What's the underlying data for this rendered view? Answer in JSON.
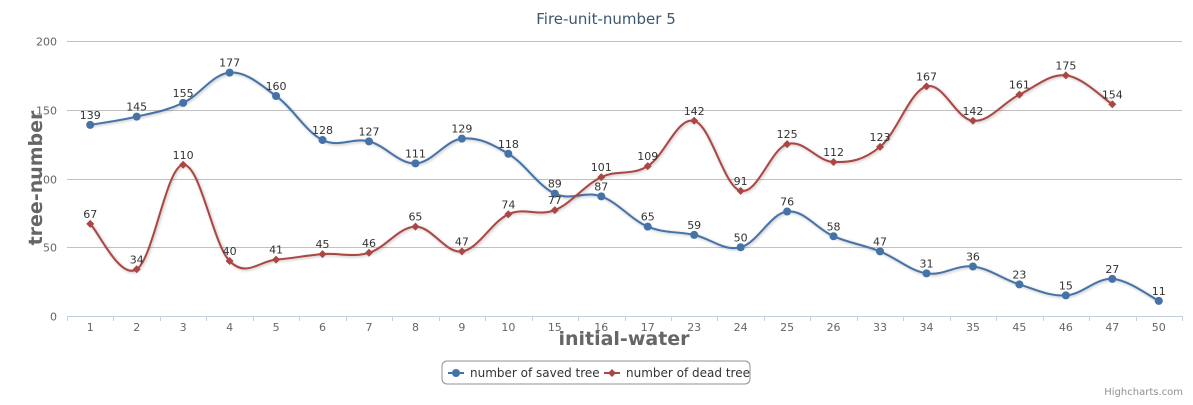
{
  "chart_data": {
    "type": "line",
    "title": "Fire-unit-number 5",
    "xlabel": "initial-water",
    "ylabel": "tree-number",
    "ylim": [
      0,
      200
    ],
    "yticks": [
      "0",
      "50",
      "100",
      "150",
      "200"
    ],
    "grid": true,
    "legend_position": "bottom-center",
    "categories": [
      "1",
      "2",
      "3",
      "4",
      "5",
      "6",
      "7",
      "8",
      "9",
      "10",
      "15",
      "16",
      "17",
      "23",
      "24",
      "25",
      "26",
      "33",
      "34",
      "35",
      "45",
      "46",
      "47",
      "50"
    ],
    "series": [
      {
        "name": "number of saved tree",
        "color": "#4572a7",
        "marker": "circle",
        "values": [
          139,
          145,
          155,
          177,
          160,
          128,
          127,
          111,
          129,
          118,
          89,
          87,
          65,
          59,
          50,
          76,
          58,
          47,
          31,
          36,
          23,
          15,
          27,
          11
        ]
      },
      {
        "name": "number of dead tree",
        "color": "#aa4643",
        "marker": "diamond",
        "values": [
          67,
          34,
          110,
          40,
          41,
          45,
          46,
          65,
          47,
          74,
          77,
          101,
          109,
          142,
          91,
          125,
          112,
          123,
          167,
          142,
          161,
          175,
          154,
          null
        ]
      }
    ]
  },
  "credits": "Highcharts.com"
}
